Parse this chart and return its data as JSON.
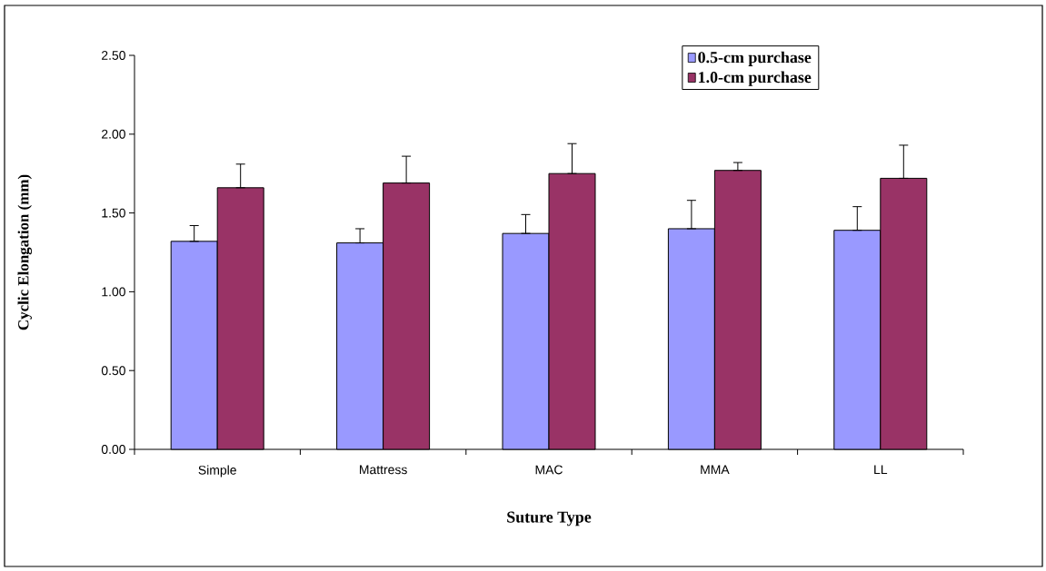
{
  "chart_data": {
    "type": "bar",
    "xlabel": "Suture Type",
    "ylabel": "Cyclic Elongation (mm)",
    "categories": [
      "Simple",
      "Mattress",
      "MAC",
      "MMA",
      "LL"
    ],
    "series": [
      {
        "name": "0.5-cm purchase",
        "color": "#9999ff",
        "values": [
          1.32,
          1.31,
          1.37,
          1.4,
          1.39
        ],
        "errors": [
          [
            1.32,
            1.42
          ],
          [
            1.31,
            1.4
          ],
          [
            1.37,
            1.49
          ],
          [
            1.4,
            1.58
          ],
          [
            1.39,
            1.54
          ]
        ]
      },
      {
        "name": "1.0-cm purchase",
        "color": "#993366",
        "values": [
          1.66,
          1.69,
          1.75,
          1.77,
          1.72
        ],
        "errors": [
          [
            1.66,
            1.81
          ],
          [
            1.69,
            1.86
          ],
          [
            1.75,
            1.94
          ],
          [
            1.77,
            1.82
          ],
          [
            1.72,
            1.93
          ]
        ]
      }
    ],
    "ylim": [
      0,
      2.5
    ],
    "yticks": [
      {
        "value": 0,
        "label": "0.00"
      },
      {
        "value": 0.5,
        "label": "0.50"
      },
      {
        "value": 1,
        "label": "1.00"
      },
      {
        "value": 1.5,
        "label": "1.50"
      },
      {
        "value": 2,
        "label": "2.00"
      },
      {
        "value": 2.5,
        "label": "2.50"
      }
    ],
    "legend": "top right"
  }
}
